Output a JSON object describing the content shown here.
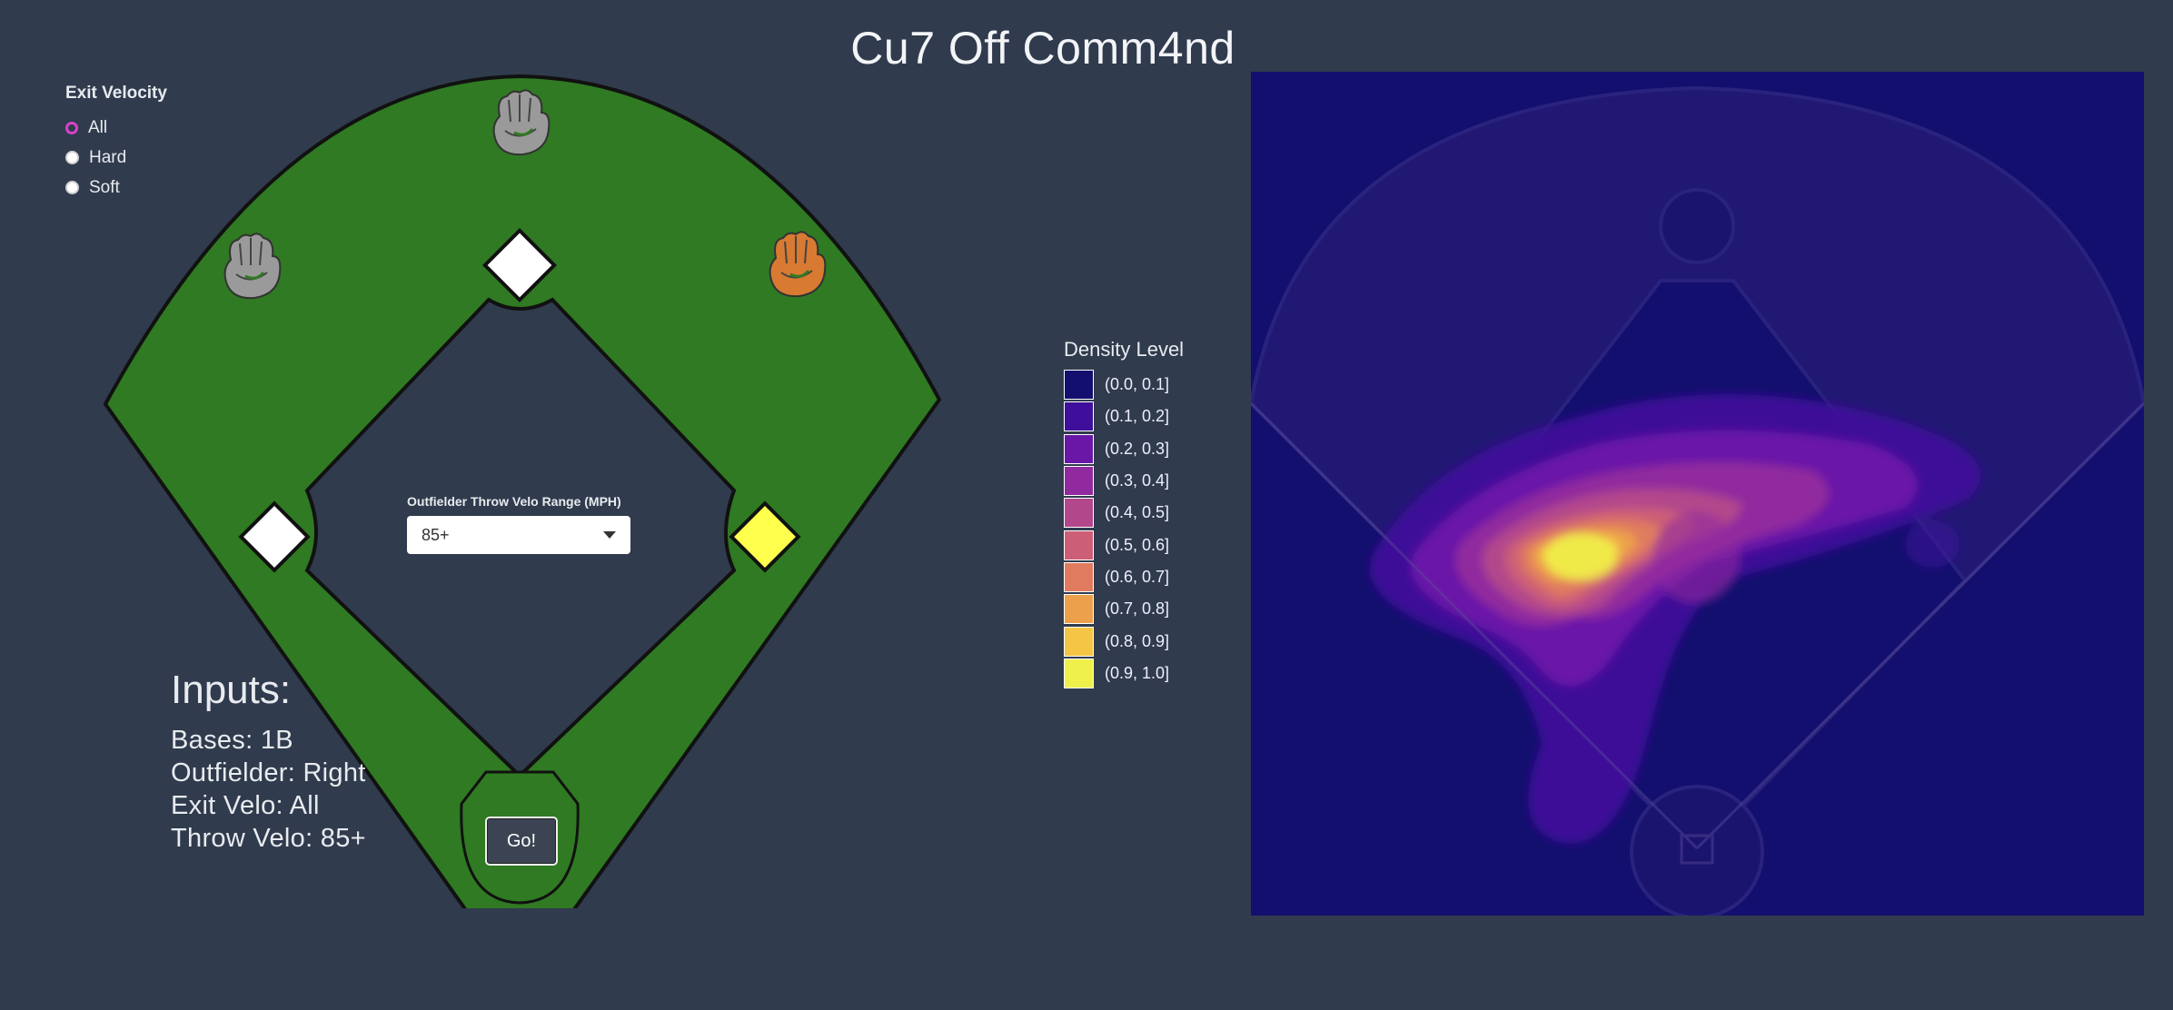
{
  "app": {
    "title": "Cu7 Off Comm4nd"
  },
  "exit_velocity": {
    "heading": "Exit Velocity",
    "options": [
      {
        "label": "All",
        "checked": true
      },
      {
        "label": "Hard",
        "checked": false
      },
      {
        "label": "Soft",
        "checked": false
      }
    ]
  },
  "throw_velo": {
    "label": "Outfielder Throw Velo Range (MPH)",
    "value": "85+"
  },
  "go_button": {
    "label": "Go!"
  },
  "inputs": {
    "heading": "Inputs:",
    "lines": [
      "Bases: 1B",
      "Outfielder: Right",
      "Exit Velo: All",
      "Throw Velo: 85+"
    ]
  },
  "field": {
    "base_colors": {
      "second": "#ffffff",
      "third": "#ffffff",
      "first": "#ffff4d"
    },
    "field_color": "#2f7a22",
    "gloves": [
      {
        "name": "left-fielder-glove-icon",
        "color": "#9a9a9a"
      },
      {
        "name": "center-fielder-glove-icon",
        "color": "#9a9a9a"
      },
      {
        "name": "right-fielder-glove-icon",
        "color": "#d87a32"
      }
    ]
  },
  "legend": {
    "title": "Density Level",
    "items": [
      {
        "label": "(0.0, 0.1]",
        "color": "#120f6e"
      },
      {
        "label": "(0.1, 0.2]",
        "color": "#3e0f9a"
      },
      {
        "label": "(0.2, 0.3]",
        "color": "#6a17a8"
      },
      {
        "label": "(0.3, 0.4]",
        "color": "#912a9e"
      },
      {
        "label": "(0.4, 0.5]",
        "color": "#b2478c"
      },
      {
        "label": "(0.5, 0.6]",
        "color": "#cc5f77"
      },
      {
        "label": "(0.6, 0.7]",
        "color": "#e07b5f"
      },
      {
        "label": "(0.7, 0.8]",
        "color": "#eda04b"
      },
      {
        "label": "(0.8, 0.9]",
        "color": "#f5c546"
      },
      {
        "label": "(0.9, 1.0]",
        "color": "#eff04a"
      }
    ]
  }
}
